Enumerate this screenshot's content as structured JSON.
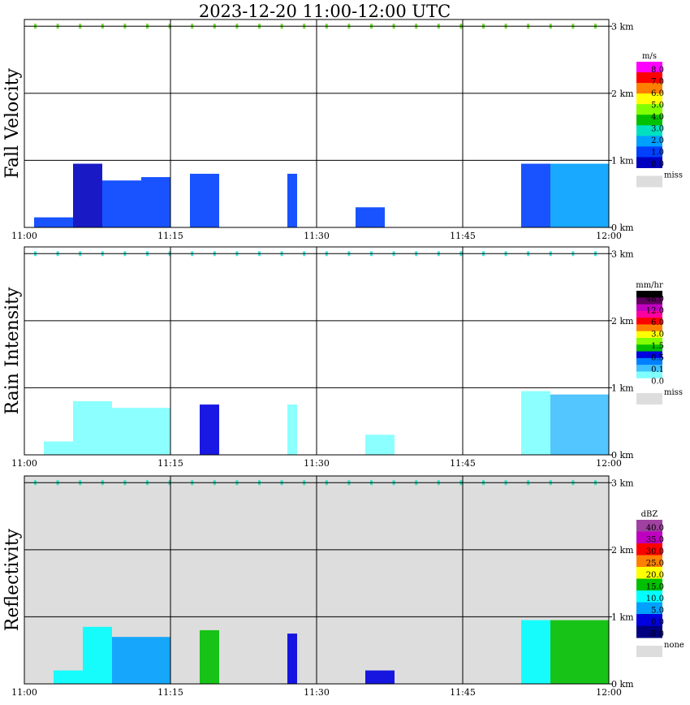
{
  "title": "2023-12-20   11:00-12:00 UTC",
  "time_ticks": [
    "11:00",
    "11:15",
    "11:30",
    "11:45",
    "12:00"
  ],
  "height_ticks": [
    "3 km",
    "2 km",
    "1 km",
    "0 km"
  ],
  "chart_data": [
    {
      "type": "heatmap",
      "id": "fall",
      "ylabel": "Fall Velocity",
      "legend_title": "m/s",
      "legend_labels": [
        "8.0",
        "7.0",
        "6.0",
        "5.0",
        "4.0",
        "3.0",
        "2.0",
        "1.0",
        "0.0"
      ],
      "legend_colors": [
        "#ff00ff",
        "#ff0000",
        "#ff8000",
        "#ffff00",
        "#80ff00",
        "#00c000",
        "#00e0c0",
        "#00a0ff",
        "#0040ff",
        "#0000c0"
      ],
      "missing_label": "miss",
      "missing_color": "#dddddd",
      "background": "#ffffff",
      "xlim": [
        0,
        60
      ],
      "ylim": [
        0,
        3.1
      ],
      "layer_color": "#70dd30",
      "columns": [
        {
          "x": [
            1,
            5
          ],
          "top": 0.15,
          "color": "#0040ff"
        },
        {
          "x": [
            5,
            8
          ],
          "top": 0.95,
          "color": "#0000c0"
        },
        {
          "x": [
            8,
            12
          ],
          "top": 0.7,
          "color": "#0040ff"
        },
        {
          "x": [
            12,
            15
          ],
          "top": 0.75,
          "color": "#0040ff"
        },
        {
          "x": [
            17,
            20
          ],
          "top": 0.8,
          "color": "#0040ff"
        },
        {
          "x": [
            27,
            28
          ],
          "top": 0.8,
          "color": "#0040ff"
        },
        {
          "x": [
            34,
            37
          ],
          "top": 0.3,
          "color": "#0040ff"
        },
        {
          "x": [
            51,
            54
          ],
          "top": 0.95,
          "color": "#0040ff"
        },
        {
          "x": [
            54,
            60
          ],
          "top": 0.95,
          "color": "#00a0ff"
        }
      ]
    },
    {
      "type": "heatmap",
      "id": "rain",
      "ylabel": "Rain Intensity",
      "legend_title": "mm/hr",
      "legend_labels": [
        "48.0",
        "12.0",
        "6.0",
        "3.0",
        "1.5",
        "0.5",
        "0.1",
        "0.0"
      ],
      "legend_colors": [
        "#000000",
        "#600060",
        "#c000c0",
        "#ff00a0",
        "#ff0000",
        "#ff8000",
        "#ffff00",
        "#80ff00",
        "#00c000",
        "#0000e0",
        "#0080ff",
        "#40c0ff",
        "#80ffff",
        "#ffffff"
      ],
      "missing_label": "miss",
      "missing_color": "#dddddd",
      "background": "#ffffff",
      "xlim": [
        0,
        60
      ],
      "ylim": [
        0,
        3.1
      ],
      "layer_color": "#40e8e0",
      "columns": [
        {
          "x": [
            2,
            5
          ],
          "top": 0.2,
          "color": "#80ffff"
        },
        {
          "x": [
            5,
            9
          ],
          "top": 0.8,
          "color": "#80ffff"
        },
        {
          "x": [
            9,
            15
          ],
          "top": 0.7,
          "color": "#80ffff"
        },
        {
          "x": [
            18,
            20
          ],
          "top": 0.75,
          "color": "#0000e0"
        },
        {
          "x": [
            27,
            28
          ],
          "top": 0.75,
          "color": "#80ffff"
        },
        {
          "x": [
            35,
            38
          ],
          "top": 0.3,
          "color": "#80ffff"
        },
        {
          "x": [
            51,
            54
          ],
          "top": 0.95,
          "color": "#80ffff"
        },
        {
          "x": [
            54,
            60
          ],
          "top": 0.9,
          "color": "#40c0ff"
        }
      ]
    },
    {
      "type": "heatmap",
      "id": "refl",
      "ylabel": "Reflectivity",
      "legend_title": "dBZ",
      "legend_labels": [
        "40.0",
        "35.0",
        "30.0",
        "25.0",
        "20.0",
        "15.0",
        "10.0",
        "5.0",
        "0.0",
        "-5.0"
      ],
      "legend_colors": [
        "#a040a0",
        "#c000c0",
        "#ff0000",
        "#ff8000",
        "#ffff00",
        "#00c000",
        "#00ffff",
        "#00a0ff",
        "#0000e0",
        "#000080"
      ],
      "missing_label": "none",
      "missing_color": "#dddddd",
      "background": "#dddddd",
      "xlim": [
        0,
        60
      ],
      "ylim": [
        0,
        3.1
      ],
      "layer_color": "#30e0c0",
      "columns": [
        {
          "x": [
            3,
            6
          ],
          "top": 0.2,
          "color": "#00ffff"
        },
        {
          "x": [
            6,
            9
          ],
          "top": 0.85,
          "color": "#00ffff"
        },
        {
          "x": [
            9,
            15
          ],
          "top": 0.7,
          "color": "#00a0ff"
        },
        {
          "x": [
            18,
            20
          ],
          "top": 0.8,
          "color": "#00c000"
        },
        {
          "x": [
            27,
            28
          ],
          "top": 0.75,
          "color": "#0000e0"
        },
        {
          "x": [
            35,
            38
          ],
          "top": 0.2,
          "color": "#0000e0"
        },
        {
          "x": [
            51,
            54
          ],
          "top": 0.95,
          "color": "#00ffff"
        },
        {
          "x": [
            54,
            60
          ],
          "top": 0.95,
          "color": "#00c000"
        }
      ]
    }
  ]
}
